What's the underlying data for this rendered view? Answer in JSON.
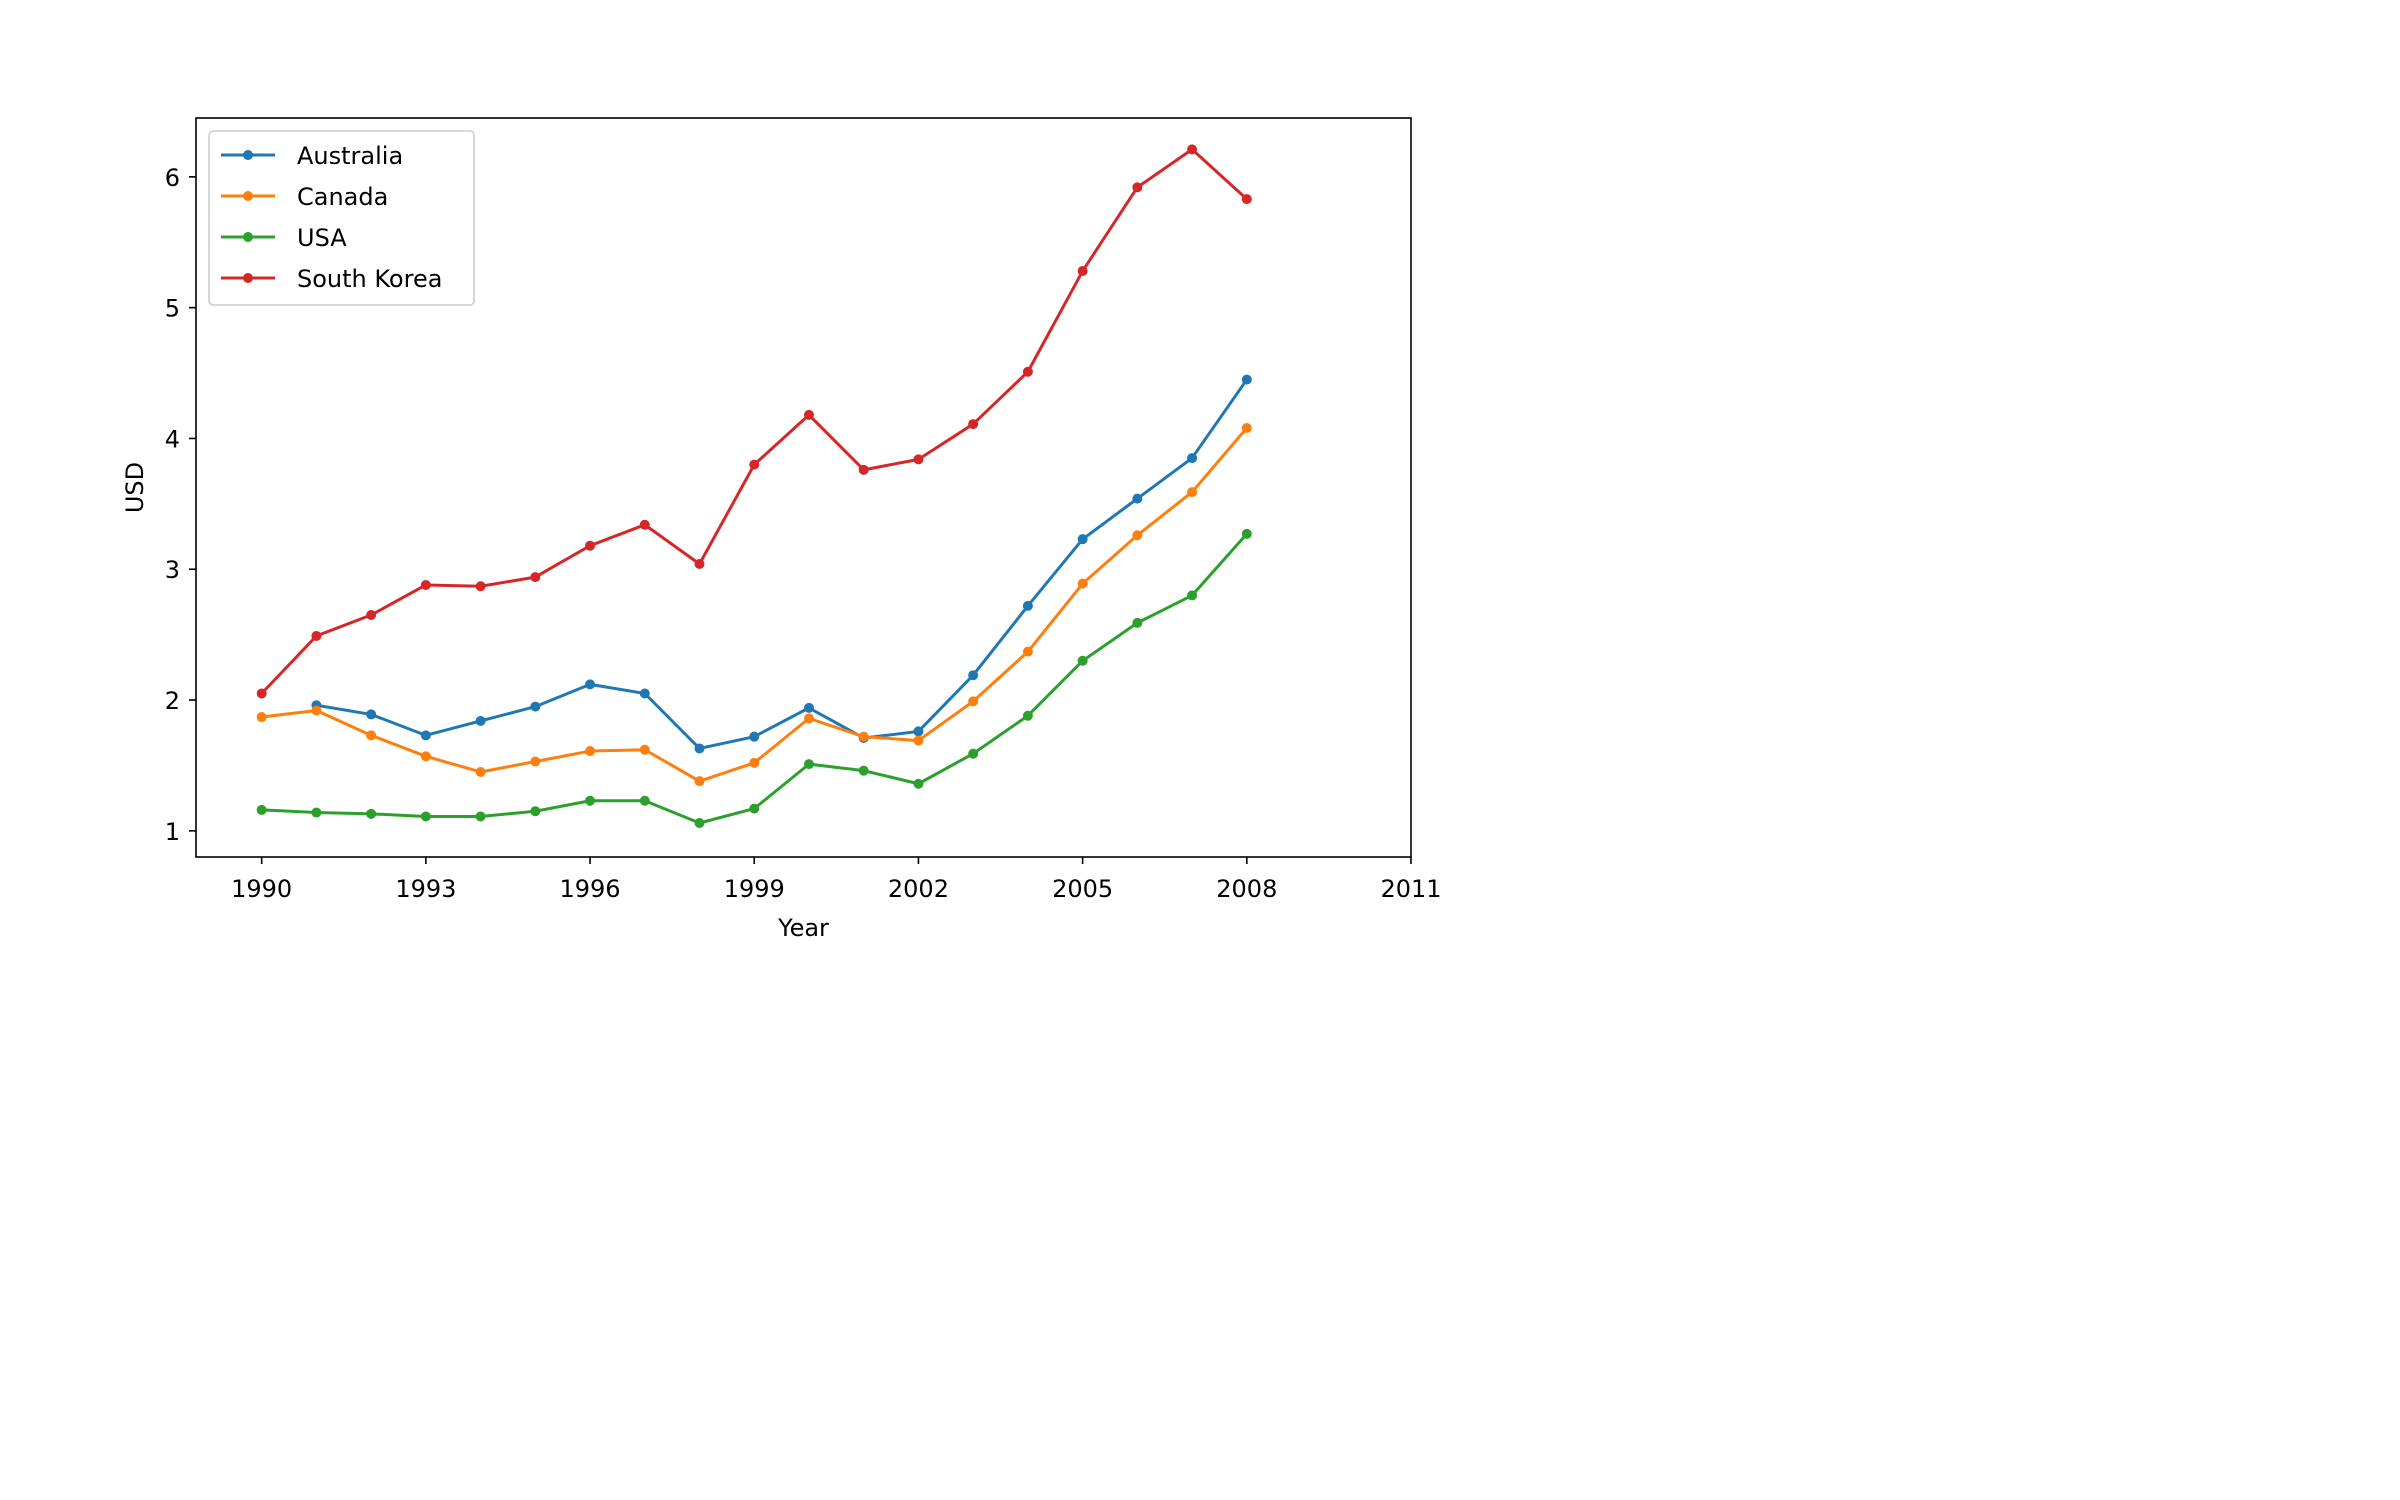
{
  "chart_data": {
    "type": "line",
    "title": "",
    "xlabel": "Year",
    "ylabel": "USD",
    "xlim": [
      1988.8,
      2011
    ],
    "ylim": [
      0.8,
      6.45
    ],
    "xticks": [
      1990,
      1993,
      1996,
      1999,
      2002,
      2005,
      2008,
      2011
    ],
    "yticks": [
      1,
      2,
      3,
      4,
      5,
      6
    ],
    "grid": false,
    "legend_position": "top-left",
    "series": [
      {
        "name": "Australia",
        "color": "#1f77b4",
        "x": [
          1991,
          1992,
          1993,
          1994,
          1995,
          1996,
          1997,
          1998,
          1999,
          2000,
          2001,
          2002,
          2003,
          2004,
          2005,
          2006,
          2007,
          2008
        ],
        "values": [
          1.96,
          1.89,
          1.73,
          1.84,
          1.95,
          2.12,
          2.05,
          1.63,
          1.72,
          1.94,
          1.71,
          1.76,
          2.19,
          2.72,
          3.23,
          3.54,
          3.85,
          4.45
        ]
      },
      {
        "name": "Canada",
        "color": "#ff7f0e",
        "x": [
          1990,
          1991,
          1992,
          1993,
          1994,
          1995,
          1996,
          1997,
          1998,
          1999,
          2000,
          2001,
          2002,
          2003,
          2004,
          2005,
          2006,
          2007,
          2008
        ],
        "values": [
          1.87,
          1.92,
          1.73,
          1.57,
          1.45,
          1.53,
          1.61,
          1.62,
          1.38,
          1.52,
          1.86,
          1.72,
          1.69,
          1.99,
          2.37,
          2.89,
          3.26,
          3.59,
          4.08
        ]
      },
      {
        "name": "USA",
        "color": "#2ca02c",
        "x": [
          1990,
          1991,
          1992,
          1993,
          1994,
          1995,
          1996,
          1997,
          1998,
          1999,
          2000,
          2001,
          2002,
          2003,
          2004,
          2005,
          2006,
          2007,
          2008
        ],
        "values": [
          1.16,
          1.14,
          1.13,
          1.11,
          1.11,
          1.15,
          1.23,
          1.23,
          1.06,
          1.17,
          1.51,
          1.46,
          1.36,
          1.59,
          1.88,
          2.3,
          2.59,
          2.8,
          3.27
        ]
      },
      {
        "name": "South Korea",
        "color": "#d62728",
        "x": [
          1990,
          1991,
          1992,
          1993,
          1994,
          1995,
          1996,
          1997,
          1998,
          1999,
          2000,
          2001,
          2002,
          2003,
          2004,
          2005,
          2006,
          2007,
          2008
        ],
        "values": [
          2.05,
          2.49,
          2.65,
          2.88,
          2.87,
          2.94,
          3.18,
          3.34,
          3.04,
          3.8,
          4.18,
          3.76,
          3.84,
          4.11,
          4.51,
          5.28,
          5.92,
          6.21,
          5.83
        ]
      }
    ]
  }
}
